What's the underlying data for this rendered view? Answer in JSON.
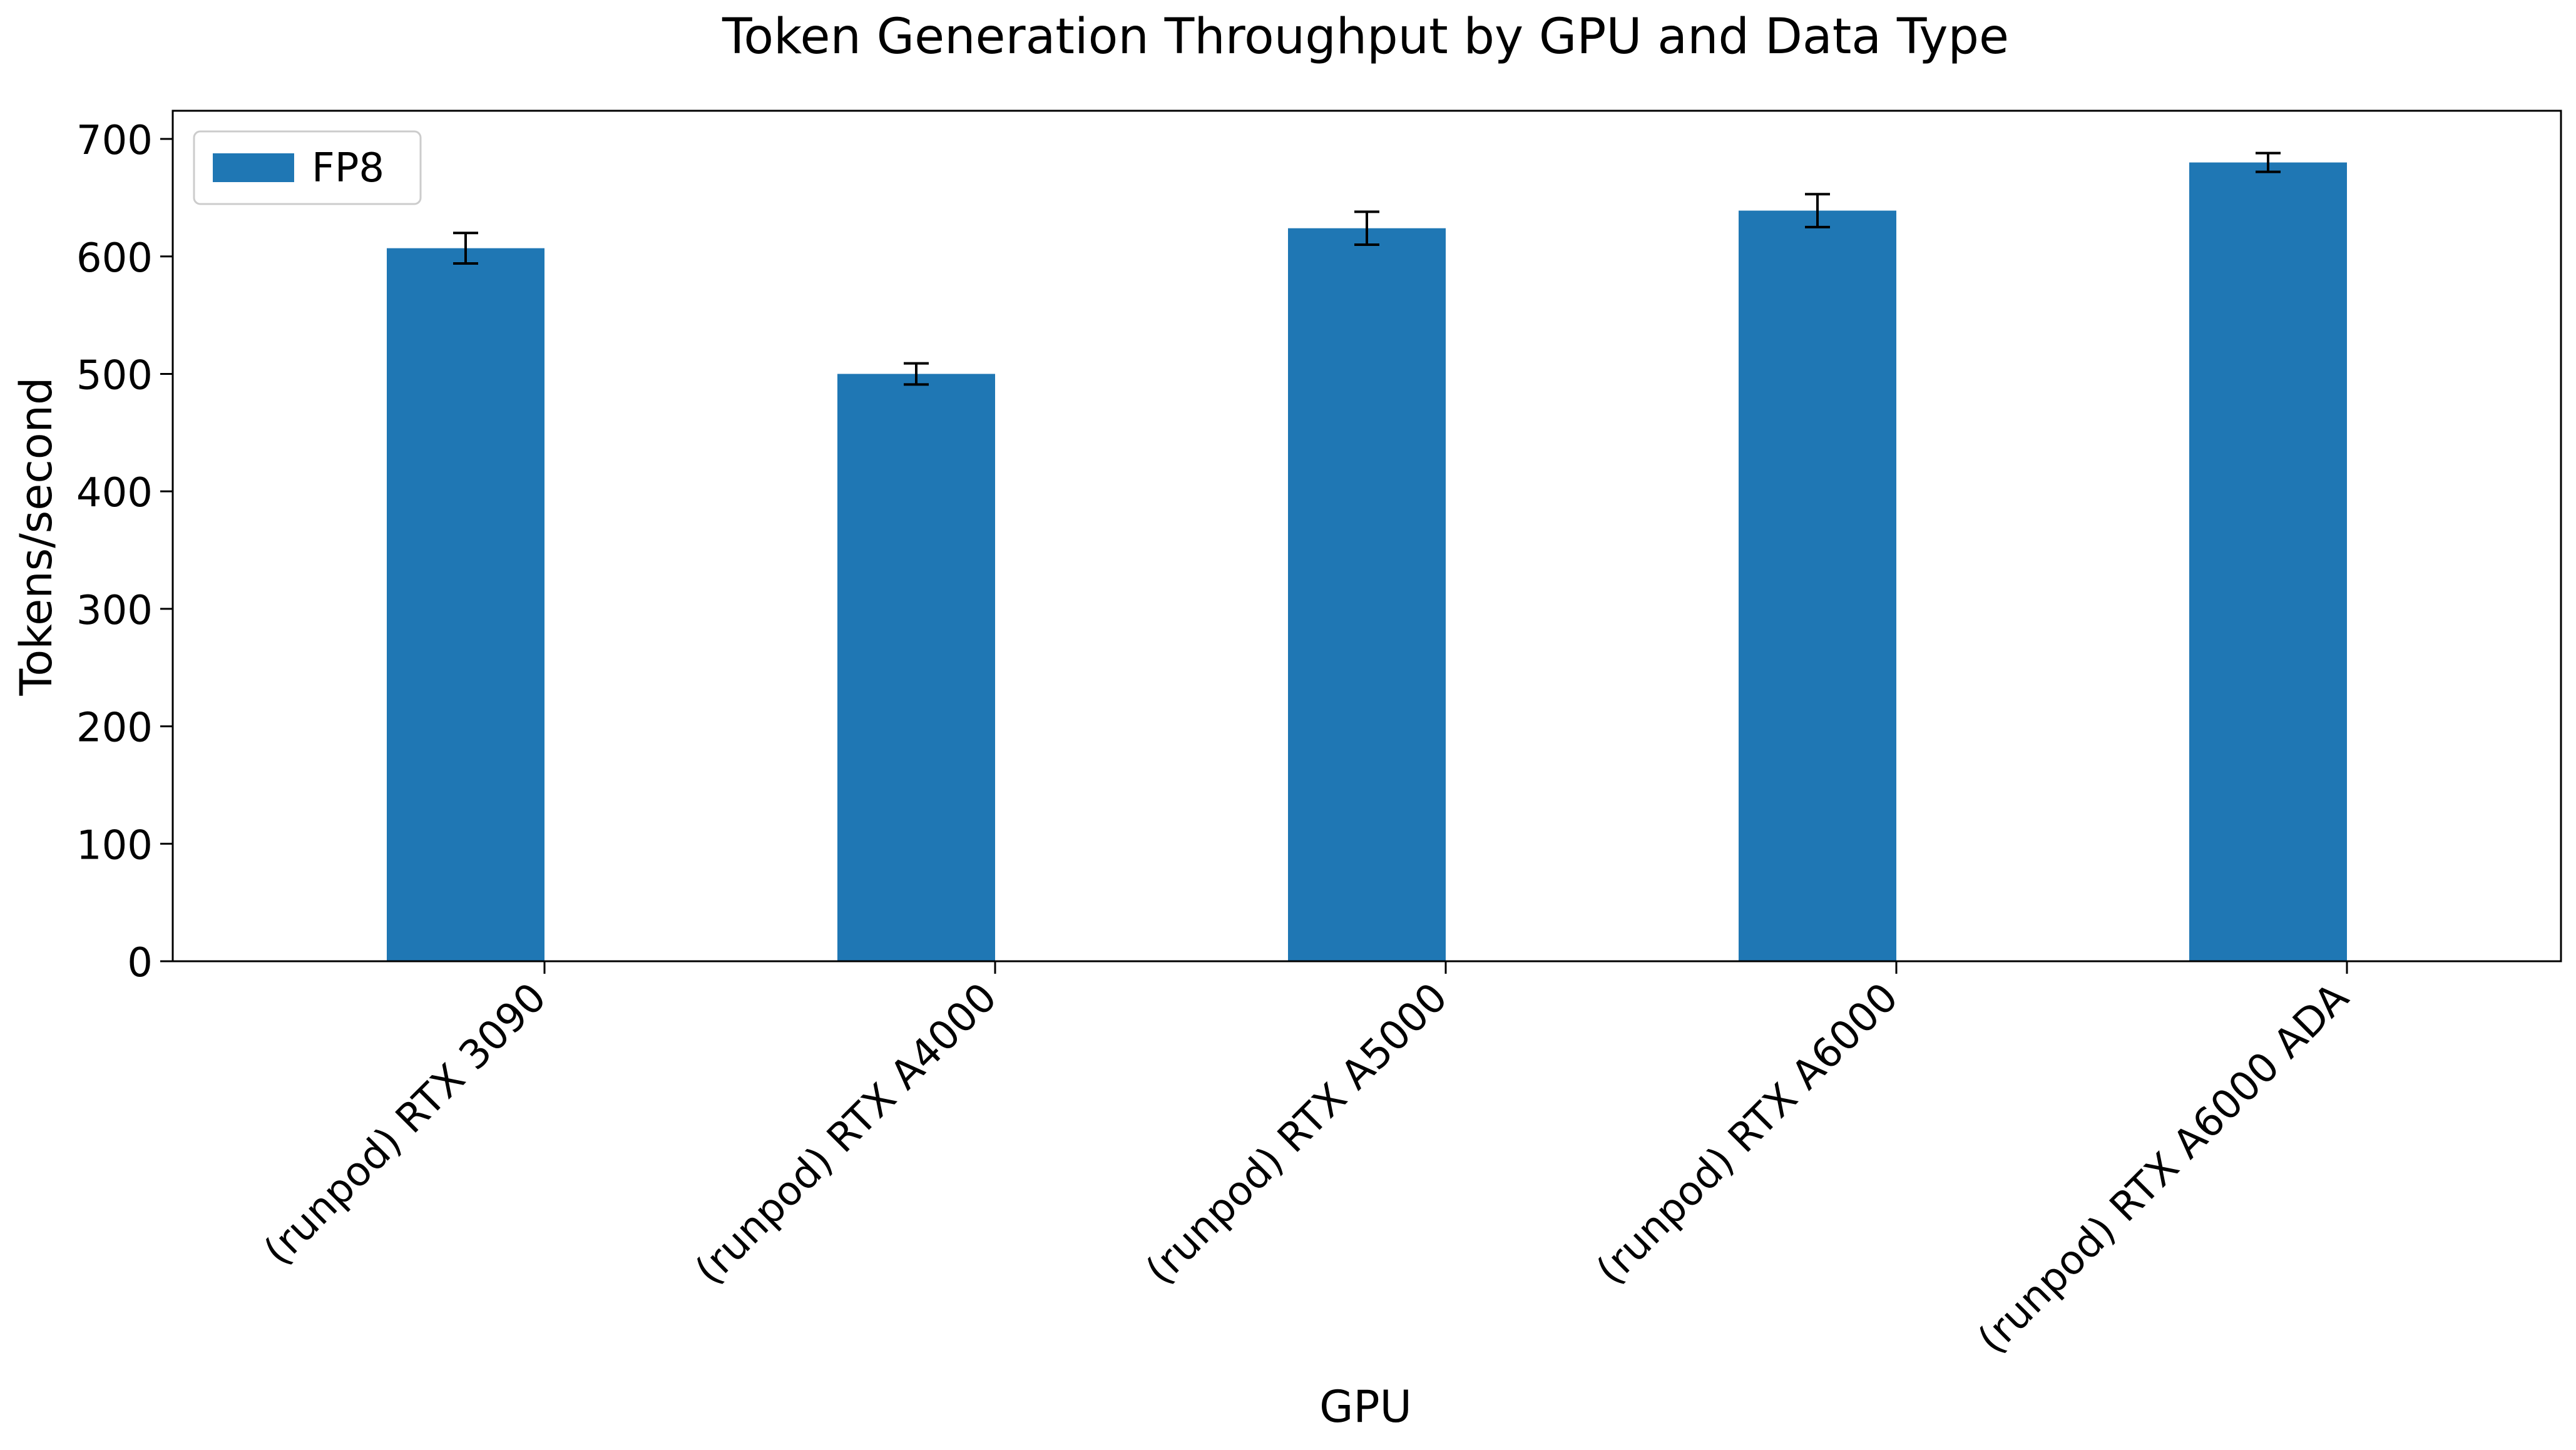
{
  "chart_data": {
    "type": "bar",
    "title": "Token Generation Throughput by GPU and Data Type",
    "xlabel": "GPU",
    "ylabel": "Tokens/second",
    "ylim": [
      0,
      724
    ],
    "yticks": [
      0,
      100,
      200,
      300,
      400,
      500,
      600,
      700
    ],
    "categories": [
      "(runpod) RTX 3090",
      "(runpod) RTX A4000",
      "(runpod) RTX A5000",
      "(runpod) RTX A6000",
      "(runpod) RTX A6000 ADA"
    ],
    "series": [
      {
        "name": "FP8",
        "color": "#1f77b4",
        "values": [
          607,
          500,
          624,
          639,
          680
        ],
        "errors": [
          13,
          9,
          14,
          14,
          8
        ]
      }
    ],
    "legend": "upper-left",
    "grid": false
  }
}
